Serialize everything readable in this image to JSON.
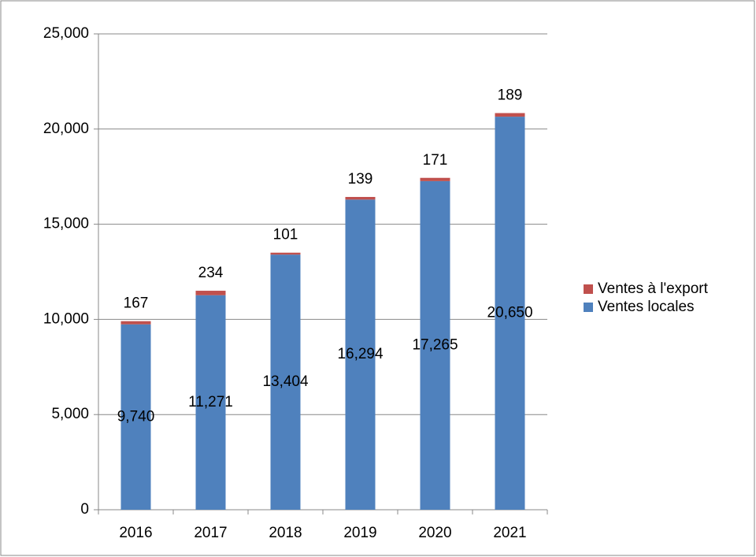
{
  "chart_data": {
    "type": "stacked_bar",
    "categories": [
      "2016",
      "2017",
      "2018",
      "2019",
      "2020",
      "2021"
    ],
    "series": [
      {
        "name": "Ventes locales",
        "color": "#4f81bd",
        "values": [
          9740,
          11271,
          13404,
          16294,
          17265,
          20650
        ],
        "value_labels": [
          "9,740",
          "11,271",
          "13,404",
          "16,294",
          "17,265",
          "20,650"
        ]
      },
      {
        "name": "Ventes à l'export",
        "color": "#c0504d",
        "values": [
          167,
          234,
          101,
          139,
          171,
          189
        ]
      }
    ],
    "ylim": [
      0,
      25000
    ],
    "yticks": [
      0,
      {
        "value": 5000,
        "label": "5,000"
      },
      {
        "value": 10000,
        "label": "10,000"
      },
      {
        "value": 15000,
        "label": "15,000"
      },
      {
        "value": 20000,
        "label": "20,000"
      },
      {
        "value": 25000,
        "label": "25,000"
      }
    ],
    "grid": true,
    "legend": "right"
  }
}
